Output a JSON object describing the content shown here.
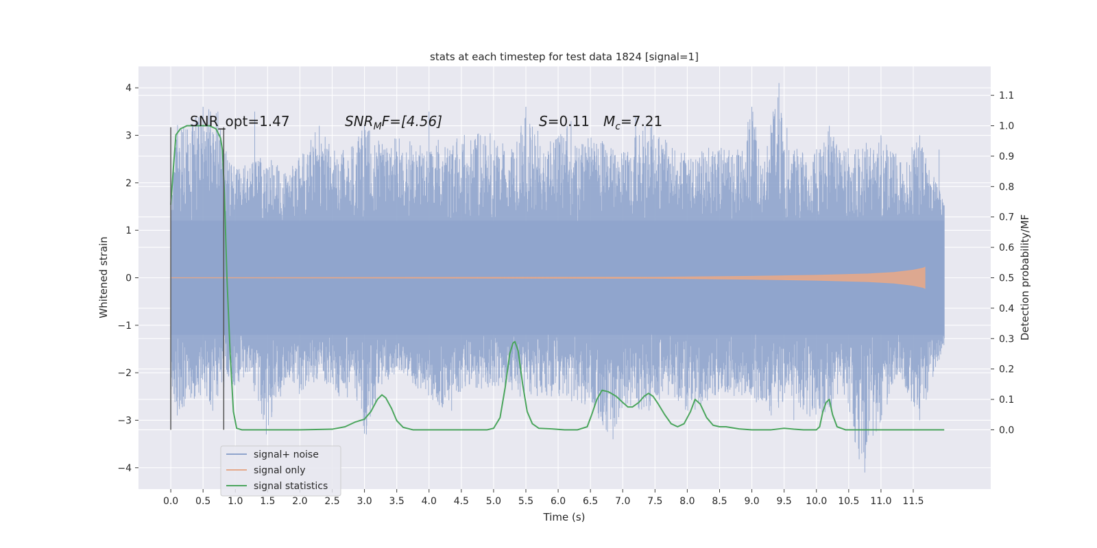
{
  "chart_data": {
    "type": "line",
    "title": "stats at each timestep for test data 1824 [signal=1]",
    "xlabel": "Time (s)",
    "ylabel": "Whitened strain",
    "ylabel_right": "Detection probability/MF",
    "xlim": [
      -0.5,
      12.7
    ],
    "ylim": [
      -4.45,
      4.45
    ],
    "ylim_right": [
      -0.195,
      1.195
    ],
    "x_ticks": [
      0.0,
      0.5,
      1.0,
      1.5,
      2.0,
      2.5,
      3.0,
      3.5,
      4.0,
      4.5,
      5.0,
      5.5,
      6.0,
      6.5,
      7.0,
      7.5,
      8.0,
      8.5,
      9.0,
      9.5,
      10.0,
      10.5,
      11.0,
      11.5
    ],
    "x_tick_labels": [
      "0.0",
      "0.5",
      "1.0",
      "1.5",
      "2.0",
      "2.5",
      "3.0",
      "3.5",
      "4.0",
      "4.5",
      "5.0",
      "5.5",
      "6.0",
      "6.5",
      "7.0",
      "7.5",
      "8.0",
      "8.5",
      "9.0",
      "9.5",
      "10.0",
      "10.5",
      "11.0",
      "11.5"
    ],
    "y_ticks": [
      -4,
      -3,
      -2,
      -1,
      0,
      1,
      2,
      3,
      4
    ],
    "y_tick_labels": [
      "−4",
      "−3",
      "−2",
      "−1",
      "0",
      "1",
      "2",
      "3",
      "4"
    ],
    "y_ticks_right": [
      0.0,
      0.1,
      0.2,
      0.3,
      0.4,
      0.5,
      0.6,
      0.7,
      0.8,
      0.9,
      1.0,
      1.1
    ],
    "y_tick_labels_right": [
      "0.0",
      "0.1",
      "0.2",
      "0.3",
      "0.4",
      "0.5",
      "0.6",
      "0.7",
      "0.8",
      "0.9",
      "1.0",
      "1.1"
    ],
    "grid": true,
    "legend_position": "lower-left",
    "annotations": {
      "snr_opt": "SNR_opt=1.47",
      "snr_mf_sym": "SNR",
      "snr_mf_sub": "M",
      "snr_mf_rest": "F=[4.56]",
      "s_sym": "S",
      "s_rest": "=0.11",
      "mc_sym": "M",
      "mc_sub": "c",
      "mc_rest": "=7.21"
    },
    "marker_lines_x": [
      0.0,
      0.82
    ],
    "series": [
      {
        "name": "signal+ noise",
        "color": "#8fa4cc",
        "axis": "left",
        "x_range": [
          0.0,
          11.98
        ],
        "envelope_points": [
          [
            0.0,
            1.6,
            -2.4
          ],
          [
            0.1,
            3.3,
            -2.9
          ],
          [
            0.3,
            3.2,
            -2.6
          ],
          [
            0.5,
            3.6,
            -2.5
          ],
          [
            0.7,
            3.5,
            -2.8
          ],
          [
            0.9,
            2.5,
            -2.2
          ],
          [
            1.0,
            2.3,
            -2.3
          ],
          [
            1.2,
            2.4,
            -2.0
          ],
          [
            1.5,
            2.6,
            -3.3
          ],
          [
            1.8,
            2.2,
            -2.1
          ],
          [
            2.0,
            2.6,
            -2.5
          ],
          [
            2.3,
            3.2,
            -2.1
          ],
          [
            2.6,
            2.6,
            -2.5
          ],
          [
            2.9,
            3.0,
            -2.6
          ],
          [
            3.0,
            3.2,
            -3.3
          ],
          [
            3.3,
            2.9,
            -2.2
          ],
          [
            3.6,
            3.0,
            -2.0
          ],
          [
            4.0,
            2.7,
            -2.6
          ],
          [
            4.2,
            3.0,
            -2.8
          ],
          [
            4.5,
            3.0,
            -2.4
          ],
          [
            5.0,
            3.1,
            -2.3
          ],
          [
            5.3,
            2.7,
            -2.4
          ],
          [
            5.5,
            3.6,
            -2.6
          ],
          [
            5.8,
            2.8,
            -2.5
          ],
          [
            6.0,
            3.0,
            -2.5
          ],
          [
            6.2,
            3.3,
            -2.6
          ],
          [
            6.5,
            3.0,
            -2.7
          ],
          [
            6.8,
            2.9,
            -3.4
          ],
          [
            7.0,
            2.7,
            -2.8
          ],
          [
            7.4,
            3.3,
            -2.8
          ],
          [
            7.8,
            2.8,
            -2.6
          ],
          [
            8.0,
            2.6,
            -2.9
          ],
          [
            8.4,
            2.8,
            -2.5
          ],
          [
            8.8,
            2.7,
            -2.5
          ],
          [
            9.0,
            3.6,
            -2.5
          ],
          [
            9.2,
            2.5,
            -2.9
          ],
          [
            9.4,
            4.1,
            -2.8
          ],
          [
            9.6,
            2.8,
            -2.5
          ],
          [
            9.9,
            2.6,
            -3.0
          ],
          [
            10.2,
            3.2,
            -3.0
          ],
          [
            10.4,
            2.7,
            -2.3
          ],
          [
            10.7,
            2.8,
            -4.1
          ],
          [
            11.0,
            3.0,
            -3.0
          ],
          [
            11.3,
            2.6,
            -2.1
          ],
          [
            11.6,
            2.9,
            -3.0
          ],
          [
            11.98,
            1.6,
            -1.4
          ]
        ],
        "spike_points": [
          [
            0.5,
            3.6
          ],
          [
            0.05,
            -2.4
          ],
          [
            0.1,
            -2.9
          ],
          [
            0.65,
            -2.8
          ],
          [
            0.73,
            3.5
          ],
          [
            1.48,
            -3.3
          ],
          [
            2.3,
            3.2
          ],
          [
            3.0,
            3.2
          ],
          [
            3.03,
            -3.3
          ],
          [
            4.0,
            3.5
          ],
          [
            4.35,
            -2.8
          ],
          [
            5.5,
            3.6
          ],
          [
            6.2,
            3.3
          ],
          [
            6.85,
            -3.4
          ],
          [
            7.2,
            3.4
          ],
          [
            7.45,
            3.2
          ],
          [
            9.0,
            3.6
          ],
          [
            9.3,
            -2.9
          ],
          [
            9.42,
            4.1
          ],
          [
            9.65,
            -3.0
          ],
          [
            10.2,
            3.2
          ],
          [
            10.75,
            -4.1
          ],
          [
            11.0,
            -3.0
          ],
          [
            11.6,
            -3.0
          ],
          [
            11.6,
            3.0
          ],
          [
            11.9,
            2.7
          ],
          [
            11.0,
            3.0
          ],
          [
            1.3,
            3.5
          ],
          [
            1.7,
            -2.5
          ]
        ]
      },
      {
        "name": "signal only",
        "color": "#e5a88a",
        "axis": "left",
        "points": [
          [
            0.0,
            0.0
          ],
          [
            7.5,
            0.01
          ],
          [
            9.0,
            0.03
          ],
          [
            10.0,
            0.05
          ],
          [
            10.8,
            0.08
          ],
          [
            11.2,
            0.11
          ],
          [
            11.5,
            0.16
          ],
          [
            11.65,
            0.2
          ],
          [
            11.68,
            0.22
          ]
        ]
      },
      {
        "name": "signal statistics",
        "color": "#4aa55c",
        "axis": "right",
        "points": [
          [
            0.0,
            0.74
          ],
          [
            0.04,
            0.86
          ],
          [
            0.08,
            0.97
          ],
          [
            0.15,
            0.99
          ],
          [
            0.25,
            1.0
          ],
          [
            0.4,
            1.0
          ],
          [
            0.6,
            1.0
          ],
          [
            0.7,
            0.99
          ],
          [
            0.77,
            0.96
          ],
          [
            0.8,
            0.92
          ],
          [
            0.83,
            0.78
          ],
          [
            0.87,
            0.5
          ],
          [
            0.92,
            0.25
          ],
          [
            0.97,
            0.06
          ],
          [
            1.02,
            0.005
          ],
          [
            1.1,
            0.0
          ],
          [
            1.5,
            0.0
          ],
          [
            2.0,
            0.0
          ],
          [
            2.5,
            0.002
          ],
          [
            2.7,
            0.01
          ],
          [
            2.85,
            0.025
          ],
          [
            3.0,
            0.035
          ],
          [
            3.1,
            0.06
          ],
          [
            3.2,
            0.1
          ],
          [
            3.27,
            0.115
          ],
          [
            3.33,
            0.105
          ],
          [
            3.42,
            0.07
          ],
          [
            3.5,
            0.03
          ],
          [
            3.6,
            0.008
          ],
          [
            3.75,
            0.0
          ],
          [
            4.5,
            0.0
          ],
          [
            4.9,
            0.0
          ],
          [
            5.0,
            0.005
          ],
          [
            5.1,
            0.04
          ],
          [
            5.18,
            0.14
          ],
          [
            5.25,
            0.25
          ],
          [
            5.3,
            0.285
          ],
          [
            5.33,
            0.29
          ],
          [
            5.38,
            0.26
          ],
          [
            5.45,
            0.15
          ],
          [
            5.52,
            0.06
          ],
          [
            5.6,
            0.02
          ],
          [
            5.7,
            0.005
          ],
          [
            5.9,
            0.003
          ],
          [
            6.1,
            0.0
          ],
          [
            6.3,
            0.0
          ],
          [
            6.45,
            0.01
          ],
          [
            6.52,
            0.05
          ],
          [
            6.6,
            0.1
          ],
          [
            6.68,
            0.13
          ],
          [
            6.78,
            0.125
          ],
          [
            6.9,
            0.11
          ],
          [
            7.0,
            0.09
          ],
          [
            7.08,
            0.075
          ],
          [
            7.15,
            0.075
          ],
          [
            7.25,
            0.09
          ],
          [
            7.33,
            0.11
          ],
          [
            7.4,
            0.12
          ],
          [
            7.47,
            0.11
          ],
          [
            7.55,
            0.085
          ],
          [
            7.65,
            0.05
          ],
          [
            7.75,
            0.02
          ],
          [
            7.85,
            0.01
          ],
          [
            7.95,
            0.02
          ],
          [
            8.05,
            0.06
          ],
          [
            8.12,
            0.1
          ],
          [
            8.2,
            0.085
          ],
          [
            8.3,
            0.04
          ],
          [
            8.4,
            0.015
          ],
          [
            8.5,
            0.01
          ],
          [
            8.6,
            0.01
          ],
          [
            8.8,
            0.003
          ],
          [
            9.0,
            0.0
          ],
          [
            9.3,
            0.0
          ],
          [
            9.5,
            0.005
          ],
          [
            9.65,
            0.002
          ],
          [
            9.8,
            0.0
          ],
          [
            10.0,
            0.0
          ],
          [
            10.05,
            0.01
          ],
          [
            10.1,
            0.06
          ],
          [
            10.15,
            0.09
          ],
          [
            10.2,
            0.1
          ],
          [
            10.25,
            0.05
          ],
          [
            10.32,
            0.01
          ],
          [
            10.45,
            0.0
          ],
          [
            11.0,
            0.0
          ],
          [
            11.5,
            0.0
          ],
          [
            11.98,
            0.0
          ]
        ]
      }
    ],
    "legend": [
      "signal+ noise",
      "signal only",
      "signal statistics"
    ]
  },
  "colors": {
    "axes_bg": "#e8e8f0",
    "grid": "#ffffff",
    "marker_line": "#555555"
  }
}
